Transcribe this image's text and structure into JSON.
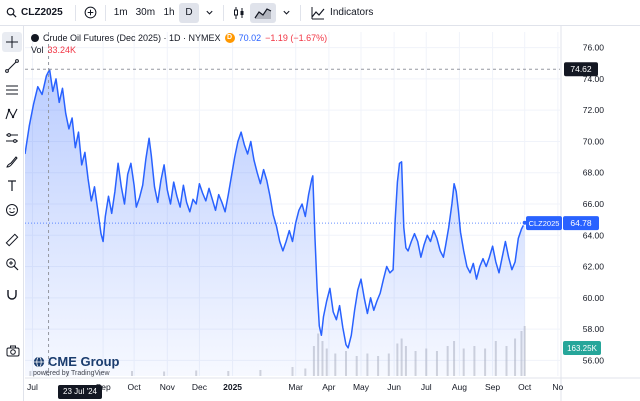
{
  "toolbar": {
    "symbol": "CLZ2025",
    "intervals": [
      {
        "label": "1m",
        "active": false
      },
      {
        "label": "30m",
        "active": false
      },
      {
        "label": "1h",
        "active": false
      },
      {
        "label": "D",
        "active": true
      }
    ],
    "indicators_label": "Indicators"
  },
  "legend": {
    "title": "Crude Oil Futures (Dec 2025) · 1D · NYMEX",
    "badge": "D",
    "price": "70.02",
    "change": "−1.19 (−1.67%)",
    "vol_label": "Vol",
    "vol_value": "33.24K"
  },
  "brand": {
    "name": "CME Group",
    "sub_prefix": "powered by ",
    "sub_link": "TradingView"
  },
  "crosshair": {
    "date": "23 Jul '24",
    "price": "74.62"
  },
  "last_price": {
    "label": "CLZ2025",
    "value": "64.78"
  },
  "last_volume": "163.25K",
  "colors": {
    "line": "#2962ff",
    "area": "#2962ff",
    "text": "#131722",
    "grid": "#f0f3fa",
    "volume": "#b2b5be",
    "brand": "#1a3c6e"
  },
  "chart_data": {
    "type": "area",
    "title": "Crude Oil Futures (Dec 2025) · 1D · NYMEX",
    "ylim": [
      55,
      77
    ],
    "yticks": [
      56,
      58,
      60,
      62,
      64,
      66,
      68,
      70,
      72,
      74,
      76
    ],
    "x_ticks": [
      {
        "label": "Jul",
        "t": 7
      },
      {
        "label": "Sep",
        "t": 73
      },
      {
        "label": "Oct",
        "t": 102
      },
      {
        "label": "Nov",
        "t": 133
      },
      {
        "label": "Dec",
        "t": 163
      },
      {
        "label": "2025",
        "t": 194
      },
      {
        "label": "Mar",
        "t": 253
      },
      {
        "label": "Apr",
        "t": 284
      },
      {
        "label": "May",
        "t": 314
      },
      {
        "label": "Jun",
        "t": 345
      },
      {
        "label": "Jul",
        "t": 375
      },
      {
        "label": "Aug",
        "t": 406
      },
      {
        "label": "Sep",
        "t": 437
      },
      {
        "label": "Oct",
        "t": 467
      },
      {
        "label": "No",
        "t": 498
      }
    ],
    "t_range": [
      0,
      500
    ],
    "crosshair": {
      "t": 22,
      "value": 74.62
    },
    "last_value": 64.78,
    "grid": true,
    "series": [
      {
        "values": [
          [
            0,
            69.2
          ],
          [
            4,
            71.0
          ],
          [
            8,
            72.4
          ],
          [
            12,
            73.5
          ],
          [
            16,
            73.0
          ],
          [
            20,
            74.2
          ],
          [
            23,
            74.6
          ],
          [
            26,
            73.2
          ],
          [
            29,
            74.0
          ],
          [
            32,
            72.5
          ],
          [
            35,
            73.4
          ],
          [
            38,
            71.8
          ],
          [
            41,
            70.8
          ],
          [
            44,
            71.5
          ],
          [
            47,
            69.6
          ],
          [
            50,
            70.6
          ],
          [
            53,
            68.5
          ],
          [
            56,
            69.3
          ],
          [
            59,
            67.6
          ],
          [
            62,
            66.2
          ],
          [
            65,
            67.1
          ],
          [
            68,
            65.6
          ],
          [
            71,
            64.1
          ],
          [
            73,
            63.6
          ],
          [
            75,
            65.2
          ],
          [
            78,
            66.5
          ],
          [
            81,
            65.4
          ],
          [
            84,
            66.8
          ],
          [
            87,
            68.6
          ],
          [
            90,
            67.1
          ],
          [
            93,
            66.0
          ],
          [
            96,
            67.9
          ],
          [
            99,
            68.6
          ],
          [
            102,
            67.2
          ],
          [
            104,
            65.8
          ],
          [
            107,
            66.4
          ],
          [
            110,
            67.2
          ],
          [
            113,
            68.9
          ],
          [
            116,
            70.2
          ],
          [
            118,
            69.1
          ],
          [
            121,
            67.1
          ],
          [
            124,
            66.1
          ],
          [
            127,
            67.5
          ],
          [
            130,
            68.5
          ],
          [
            133,
            66.9
          ],
          [
            136,
            66.0
          ],
          [
            139,
            67.4
          ],
          [
            142,
            66.5
          ],
          [
            145,
            65.8
          ],
          [
            148,
            67.2
          ],
          [
            151,
            66.1
          ],
          [
            154,
            65.5
          ],
          [
            157,
            66.3
          ],
          [
            160,
            66.0
          ],
          [
            163,
            67.3
          ],
          [
            166,
            66.7
          ],
          [
            169,
            66.2
          ],
          [
            172,
            67.0
          ],
          [
            175,
            66.3
          ],
          [
            178,
            65.6
          ],
          [
            181,
            66.6
          ],
          [
            184,
            66.1
          ],
          [
            187,
            65.5
          ],
          [
            190,
            66.6
          ],
          [
            193,
            67.8
          ],
          [
            196,
            69.0
          ],
          [
            199,
            70.0
          ],
          [
            202,
            70.6
          ],
          [
            205,
            69.8
          ],
          [
            208,
            69.2
          ],
          [
            211,
            70.0
          ],
          [
            214,
            68.8
          ],
          [
            217,
            68.0
          ],
          [
            220,
            67.3
          ],
          [
            223,
            68.2
          ],
          [
            226,
            67.5
          ],
          [
            229,
            66.5
          ],
          [
            232,
            65.3
          ],
          [
            235,
            64.6
          ],
          [
            238,
            63.6
          ],
          [
            241,
            63.0
          ],
          [
            244,
            63.6
          ],
          [
            247,
            64.3
          ],
          [
            250,
            63.6
          ],
          [
            253,
            64.8
          ],
          [
            256,
            65.6
          ],
          [
            259,
            66.0
          ],
          [
            262,
            65.2
          ],
          [
            265,
            66.6
          ],
          [
            268,
            67.6
          ],
          [
            269,
            67.8
          ],
          [
            271,
            63.8
          ],
          [
            273,
            60.6
          ],
          [
            275,
            58.2
          ],
          [
            277,
            57.6
          ],
          [
            279,
            58.8
          ],
          [
            282,
            59.8
          ],
          [
            285,
            60.6
          ],
          [
            288,
            59.1
          ],
          [
            291,
            58.6
          ],
          [
            294,
            59.5
          ],
          [
            297,
            58.1
          ],
          [
            300,
            57.0
          ],
          [
            302,
            56.8
          ],
          [
            305,
            57.6
          ],
          [
            308,
            59.2
          ],
          [
            311,
            60.5
          ],
          [
            314,
            61.2
          ],
          [
            317,
            60.0
          ],
          [
            320,
            59.0
          ],
          [
            323,
            60.0
          ],
          [
            326,
            59.2
          ],
          [
            329,
            59.8
          ],
          [
            332,
            60.3
          ],
          [
            335,
            61.2
          ],
          [
            338,
            62.0
          ],
          [
            341,
            61.6
          ],
          [
            344,
            61.8
          ],
          [
            346,
            65.0
          ],
          [
            348,
            67.4
          ],
          [
            350,
            68.6
          ],
          [
            352,
            68.7
          ],
          [
            354,
            64.5
          ],
          [
            356,
            63.2
          ],
          [
            358,
            63.0
          ],
          [
            361,
            63.6
          ],
          [
            364,
            64.1
          ],
          [
            367,
            63.6
          ],
          [
            370,
            62.6
          ],
          [
            373,
            63.4
          ],
          [
            376,
            64.0
          ],
          [
            379,
            63.6
          ],
          [
            382,
            64.3
          ],
          [
            385,
            63.8
          ],
          [
            388,
            63.0
          ],
          [
            391,
            62.6
          ],
          [
            393,
            63.3
          ],
          [
            396,
            64.5
          ],
          [
            399,
            66.0
          ],
          [
            401,
            67.3
          ],
          [
            403,
            66.8
          ],
          [
            405,
            65.6
          ],
          [
            407,
            64.2
          ],
          [
            410,
            63.0
          ],
          [
            413,
            62.0
          ],
          [
            416,
            61.6
          ],
          [
            419,
            62.2
          ],
          [
            422,
            61.2
          ],
          [
            425,
            62.0
          ],
          [
            428,
            62.5
          ],
          [
            431,
            62.0
          ],
          [
            434,
            62.6
          ],
          [
            437,
            63.3
          ],
          [
            440,
            62.3
          ],
          [
            443,
            61.6
          ],
          [
            446,
            62.6
          ],
          [
            449,
            63.6
          ],
          [
            452,
            62.6
          ],
          [
            455,
            61.8
          ],
          [
            458,
            62.3
          ],
          [
            461,
            63.8
          ],
          [
            464,
            64.4
          ],
          [
            467,
            64.8
          ]
        ]
      }
    ],
    "volume": {
      "ylim_fraction": "bottom band",
      "values": [
        [
          5,
          0.1
        ],
        [
          20,
          0.12
        ],
        [
          40,
          0.1
        ],
        [
          70,
          0.08
        ],
        [
          100,
          0.1
        ],
        [
          130,
          0.09
        ],
        [
          160,
          0.11
        ],
        [
          190,
          0.1
        ],
        [
          220,
          0.12
        ],
        [
          250,
          0.18
        ],
        [
          262,
          0.15
        ],
        [
          270,
          0.6
        ],
        [
          274,
          0.85
        ],
        [
          278,
          0.7
        ],
        [
          282,
          0.55
        ],
        [
          290,
          0.45
        ],
        [
          300,
          0.5
        ],
        [
          310,
          0.4
        ],
        [
          320,
          0.45
        ],
        [
          330,
          0.4
        ],
        [
          340,
          0.45
        ],
        [
          348,
          0.65
        ],
        [
          352,
          0.75
        ],
        [
          356,
          0.6
        ],
        [
          365,
          0.5
        ],
        [
          375,
          0.55
        ],
        [
          385,
          0.5
        ],
        [
          395,
          0.6
        ],
        [
          401,
          0.7
        ],
        [
          410,
          0.55
        ],
        [
          420,
          0.6
        ],
        [
          430,
          0.55
        ],
        [
          440,
          0.7
        ],
        [
          450,
          0.6
        ],
        [
          458,
          0.75
        ],
        [
          464,
          0.9
        ],
        [
          467,
          1.0
        ]
      ]
    }
  }
}
